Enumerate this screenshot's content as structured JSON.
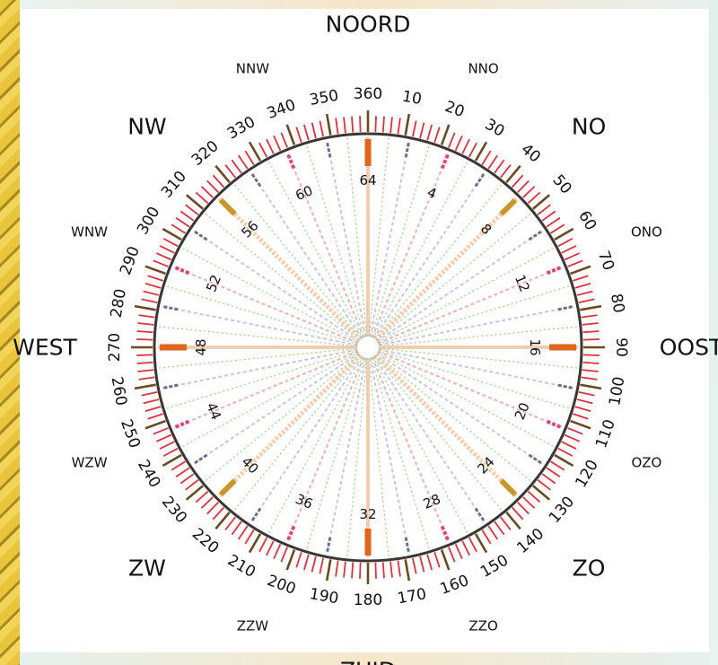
{
  "colors": {
    "ring": "#3b3632",
    "tick_red": "#d9333f",
    "tick_major": "#6b4a22",
    "accent_orange": "#e0661e",
    "spoke_beige": "#f0c9a8",
    "line_red": "#e1467a",
    "line_gray": "#6d6e88",
    "line_green": "#8ad06d",
    "line_pink": "#e7a9b5",
    "line_lavender": "#c7bedb",
    "text": "#111111"
  },
  "cardinals": [
    {
      "label": "NOORD",
      "angle": 0
    },
    {
      "label": "OOST",
      "angle": 90
    },
    {
      "label": "ZUID",
      "angle": 180
    },
    {
      "label": "WEST",
      "angle": 270
    }
  ],
  "intercardinals": [
    {
      "label": "NO",
      "angle": 45
    },
    {
      "label": "ZO",
      "angle": 135
    },
    {
      "label": "ZW",
      "angle": 225
    },
    {
      "label": "NW",
      "angle": 315
    }
  ],
  "secondary_directions": [
    {
      "label": "NNO",
      "angle": 22.5
    },
    {
      "label": "ONO",
      "angle": 67.5
    },
    {
      "label": "OZO",
      "angle": 112.5
    },
    {
      "label": "ZZO",
      "angle": 157.5
    },
    {
      "label": "ZZW",
      "angle": 202.5
    },
    {
      "label": "WZW",
      "angle": 247.5
    },
    {
      "label": "WNW",
      "angle": 292.5
    },
    {
      "label": "NNW",
      "angle": 337.5
    }
  ],
  "degree_labels": [
    {
      "text": "360",
      "angle": 0
    },
    {
      "text": "10",
      "angle": 10
    },
    {
      "text": "20",
      "angle": 20
    },
    {
      "text": "30",
      "angle": 30
    },
    {
      "text": "40",
      "angle": 40
    },
    {
      "text": "50",
      "angle": 50
    },
    {
      "text": "60",
      "angle": 60
    },
    {
      "text": "70",
      "angle": 70
    },
    {
      "text": "80",
      "angle": 80
    },
    {
      "text": "90",
      "angle": 90
    },
    {
      "text": "100",
      "angle": 100
    },
    {
      "text": "110",
      "angle": 110
    },
    {
      "text": "120",
      "angle": 120
    },
    {
      "text": "130",
      "angle": 130
    },
    {
      "text": "140",
      "angle": 140
    },
    {
      "text": "150",
      "angle": 150
    },
    {
      "text": "160",
      "angle": 160
    },
    {
      "text": "170",
      "angle": 170
    },
    {
      "text": "180",
      "angle": 180
    },
    {
      "text": "190",
      "angle": 190
    },
    {
      "text": "200",
      "angle": 200
    },
    {
      "text": "210",
      "angle": 210
    },
    {
      "text": "220",
      "angle": 220
    },
    {
      "text": "230",
      "angle": 230
    },
    {
      "text": "240",
      "angle": 240
    },
    {
      "text": "250",
      "angle": 250
    },
    {
      "text": "260",
      "angle": 260
    },
    {
      "text": "270",
      "angle": 270
    },
    {
      "text": "280",
      "angle": 280
    },
    {
      "text": "290",
      "angle": 290
    },
    {
      "text": "300",
      "angle": 300
    },
    {
      "text": "310",
      "angle": 310
    },
    {
      "text": "320",
      "angle": 320
    },
    {
      "text": "330",
      "angle": 330
    },
    {
      "text": "340",
      "angle": 340
    },
    {
      "text": "350",
      "angle": 350
    }
  ],
  "streek_labels": [
    {
      "text": "4",
      "streek": 4
    },
    {
      "text": "8",
      "streek": 8
    },
    {
      "text": "12",
      "streek": 12
    },
    {
      "text": "16",
      "streek": 16
    },
    {
      "text": "20",
      "streek": 20
    },
    {
      "text": "24",
      "streek": 24
    },
    {
      "text": "28",
      "streek": 28
    },
    {
      "text": "32",
      "streek": 32
    },
    {
      "text": "36",
      "streek": 36
    },
    {
      "text": "40",
      "streek": 40
    },
    {
      "text": "44",
      "streek": 44
    },
    {
      "text": "48",
      "streek": 48
    },
    {
      "text": "52",
      "streek": 52
    },
    {
      "text": "56",
      "streek": 56
    },
    {
      "text": "60",
      "streek": 60
    },
    {
      "text": "64",
      "streek": 64
    }
  ],
  "streek_total": 64,
  "minor_tick_step_degrees": 2
}
